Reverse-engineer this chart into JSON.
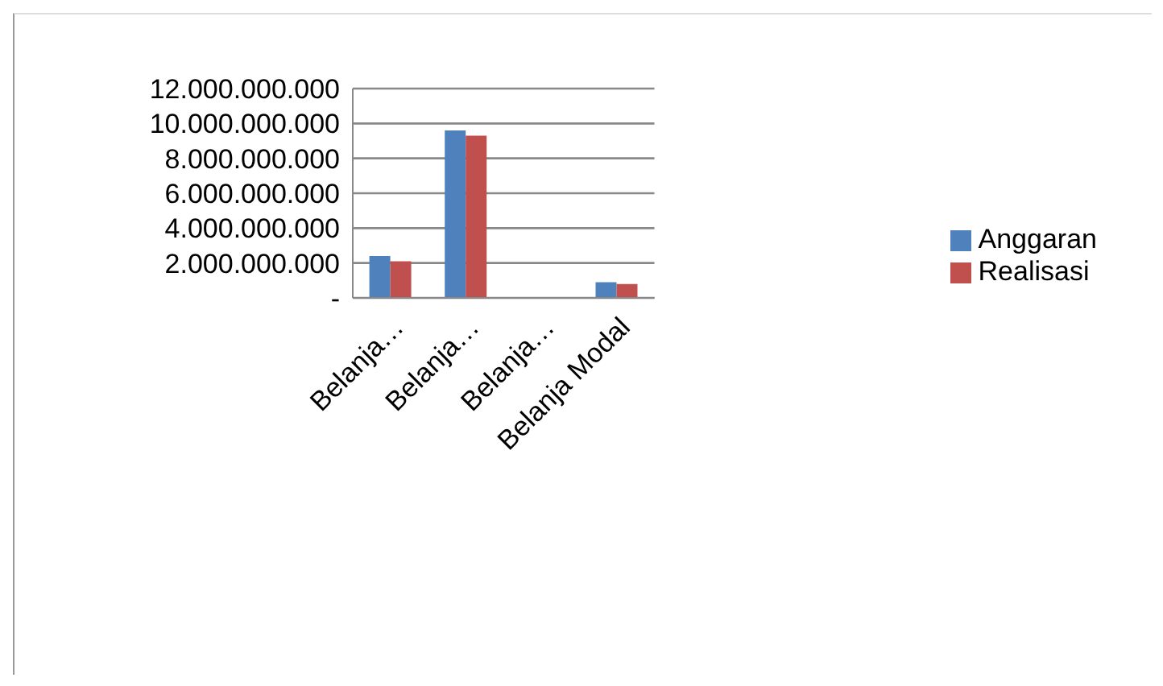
{
  "chart_data": {
    "type": "bar",
    "categories": [
      "Belanja…",
      "Belanja…",
      "Belanja…",
      "Belanja Modal"
    ],
    "series": [
      {
        "name": "Anggaran",
        "color": "#4f81bd",
        "values": [
          2400000000,
          9600000000,
          0,
          900000000
        ]
      },
      {
        "name": "Realisasi",
        "color": "#c0504d",
        "values": [
          2100000000,
          9300000000,
          0,
          800000000
        ]
      }
    ],
    "ylim": [
      0,
      12000000000
    ],
    "yticks": [
      {
        "value": 0,
        "label": "-"
      },
      {
        "value": 2000000000,
        "label": "2.000.000.000"
      },
      {
        "value": 4000000000,
        "label": "4.000.000.000"
      },
      {
        "value": 6000000000,
        "label": "6.000.000.000"
      },
      {
        "value": 8000000000,
        "label": "8.000.000.000"
      },
      {
        "value": 10000000000,
        "label": "10.000.000.000"
      },
      {
        "value": 12000000000,
        "label": "12.000.000.000"
      }
    ],
    "grid": "y",
    "legend": "right"
  }
}
